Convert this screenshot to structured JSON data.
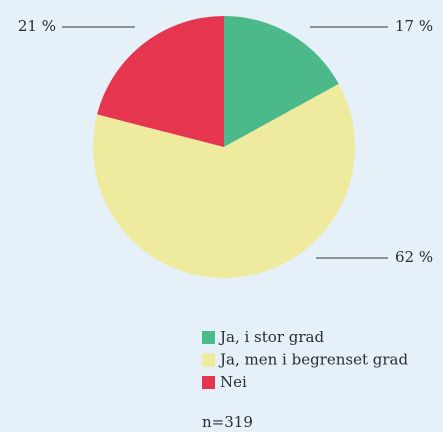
{
  "chart_data": {
    "type": "pie",
    "categories": [
      "Ja, i stor grad",
      "Ja, men i begrenset grad",
      "Nei"
    ],
    "values": [
      17,
      62,
      21
    ],
    "value_labels": [
      "17 %",
      "62 %",
      "21 %"
    ],
    "colors": [
      "#4cb98b",
      "#eeea9e",
      "#e6354f"
    ],
    "note": "n=319"
  }
}
